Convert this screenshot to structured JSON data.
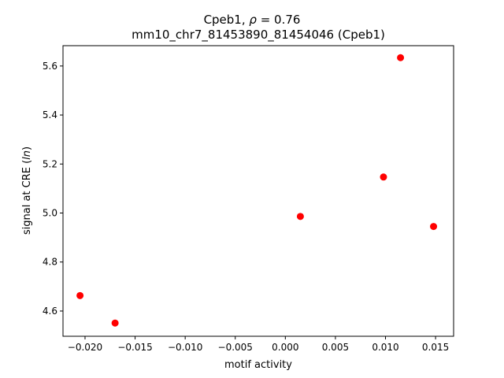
{
  "chart_data": {
    "type": "scatter",
    "title_line1_prefix": "Cpeb1, ",
    "title_line1_rho": "ρ",
    "title_line1_suffix": " = 0.76",
    "title_line2": "mm10_chr7_81453890_81454046 (Cpeb1)",
    "xlabel": "motif activity",
    "ylabel_prefix": "signal at CRE (",
    "ylabel_italic": "ln",
    "ylabel_suffix": ")",
    "xlim": [
      -0.0222,
      0.0168
    ],
    "ylim": [
      4.497,
      5.683
    ],
    "xticks": [
      -0.02,
      -0.015,
      -0.01,
      -0.005,
      0.0,
      0.005,
      0.01,
      0.015
    ],
    "xtick_labels": [
      "−0.020",
      "−0.015",
      "−0.010",
      "−0.005",
      "0.000",
      "0.005",
      "0.010",
      "0.015"
    ],
    "yticks": [
      4.6,
      4.8,
      5.0,
      5.2,
      5.4,
      5.6
    ],
    "ytick_labels": [
      "4.6",
      "4.8",
      "5.0",
      "5.2",
      "5.4",
      "5.6"
    ],
    "grid": false,
    "point_color": "#ff0000",
    "points": [
      {
        "x": -0.0205,
        "y": 4.663
      },
      {
        "x": -0.017,
        "y": 4.551
      },
      {
        "x": 0.0015,
        "y": 4.986
      },
      {
        "x": 0.0098,
        "y": 5.147
      },
      {
        "x": 0.0115,
        "y": 5.634
      },
      {
        "x": 0.0148,
        "y": 4.945
      }
    ]
  }
}
